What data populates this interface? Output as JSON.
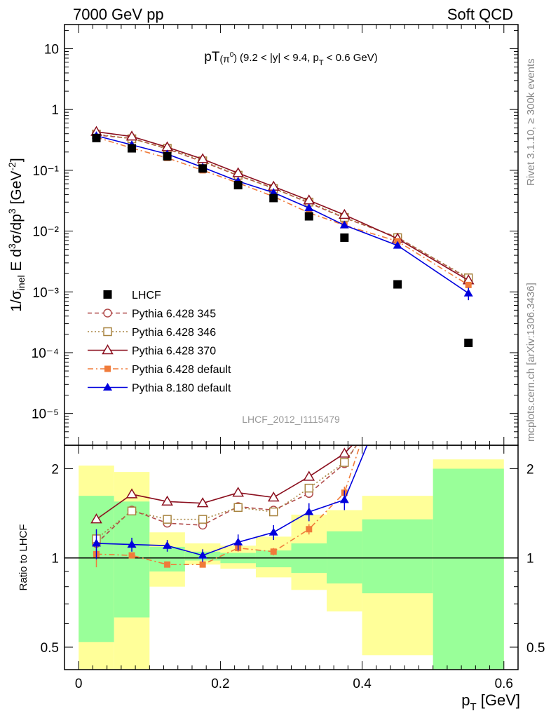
{
  "header": {
    "left": "7000 GeV pp",
    "right": "Soft QCD"
  },
  "side_labels": {
    "rivet": "Rivet 3.1.10, ≥ 300k events",
    "mcplots": "mcplots.cern.ch [arXiv:1306.3436]"
  },
  "watermark": "LHCF_2012_I1115479",
  "colors": {
    "lhcf": "#000000",
    "p345": "#b04a4a",
    "p346": "#a88440",
    "p370": "#8b0f1e",
    "p6def": "#f07b3a",
    "p8def": "#0000dd",
    "band_green": "#99ff99",
    "band_yellow": "#ffff99"
  },
  "chart_data": [
    {
      "type": "scatter",
      "title": "pT(π⁰) (9.2 < |y| < 9.4, pT < 0.6 GeV)",
      "ylabel": "1/σinel E d³σ/dp³ [GeV⁻²]",
      "yscale": "log",
      "xlim": [
        -0.02,
        0.62
      ],
      "ylim": [
        3e-06,
        25
      ],
      "yticks": [
        1e-05,
        0.0001,
        0.001,
        0.01,
        0.1,
        1,
        10
      ],
      "ytick_labels": [
        "10⁻⁵",
        "10⁻⁴",
        "10⁻³",
        "10⁻²",
        "10⁻¹",
        "1",
        "10"
      ],
      "legend_position": "bottom-left",
      "series": [
        {
          "name": "LHCF",
          "key": "lhcf",
          "marker": "square",
          "line": "none",
          "x": [
            0.025,
            0.075,
            0.125,
            0.175,
            0.225,
            0.275,
            0.325,
            0.375,
            0.45,
            0.55
          ],
          "y": [
            0.34,
            0.23,
            0.17,
            0.107,
            0.057,
            0.035,
            0.0175,
            0.0078,
            0.00133,
            0.000145
          ]
        },
        {
          "name": "Pythia 6.428 345",
          "key": "p345",
          "marker": "open-circle",
          "line": "dashed",
          "x": [
            0.025,
            0.075,
            0.125,
            0.175,
            0.225,
            0.275,
            0.325,
            0.375,
            0.45,
            0.55
          ],
          "y": [
            0.38,
            0.335,
            0.225,
            0.138,
            0.082,
            0.051,
            0.029,
            0.0165,
            0.0079,
            0.00165
          ]
        },
        {
          "name": "Pythia 6.428 346",
          "key": "p346",
          "marker": "open-square",
          "line": "dotted",
          "x": [
            0.025,
            0.075,
            0.125,
            0.175,
            0.225,
            0.275,
            0.325,
            0.375,
            0.45,
            0.55
          ],
          "y": [
            0.395,
            0.33,
            0.23,
            0.143,
            0.083,
            0.05,
            0.03,
            0.0168,
            0.0078,
            0.0017
          ]
        },
        {
          "name": "Pythia 6.428 370",
          "key": "p370",
          "marker": "open-triangle",
          "line": "solid",
          "x": [
            0.025,
            0.075,
            0.125,
            0.175,
            0.225,
            0.275,
            0.325,
            0.375,
            0.45,
            0.55
          ],
          "y": [
            0.43,
            0.36,
            0.24,
            0.153,
            0.09,
            0.054,
            0.032,
            0.0185,
            0.0075,
            0.00155
          ]
        },
        {
          "name": "Pythia 6.428 default",
          "key": "p6def",
          "marker": "filled-square-small",
          "line": "dashdot",
          "x": [
            0.025,
            0.075,
            0.125,
            0.175,
            0.225,
            0.275,
            0.325,
            0.375,
            0.45,
            0.55
          ],
          "y": [
            0.35,
            0.232,
            0.16,
            0.1,
            0.062,
            0.037,
            0.02,
            0.0125,
            0.0068,
            0.0013
          ]
        },
        {
          "name": "Pythia 8.180 default",
          "key": "p8def",
          "marker": "filled-triangle",
          "line": "solid",
          "x": [
            0.025,
            0.075,
            0.125,
            0.175,
            0.225,
            0.275,
            0.325,
            0.375,
            0.45,
            0.55
          ],
          "y": [
            0.37,
            0.262,
            0.185,
            0.112,
            0.066,
            0.043,
            0.024,
            0.0125,
            0.0058,
            0.00095
          ],
          "yerr": [
            0,
            0,
            0,
            0,
            0,
            0,
            0.002,
            0.001,
            0.0005,
            0.00022
          ]
        }
      ]
    },
    {
      "type": "line",
      "title": "",
      "xlabel": "pT [GeV]",
      "ylabel": "Ratio to LHCF",
      "yscale": "log",
      "xlim": [
        -0.02,
        0.62
      ],
      "ylim": [
        0.42,
        2.4
      ],
      "xticks": [
        0,
        0.2,
        0.4,
        0.6
      ],
      "xtick_labels": [
        "0",
        "0.2",
        "0.4",
        "0.6"
      ],
      "yticks": [
        0.5,
        1,
        2
      ],
      "ytick_labels": [
        "0.5",
        "1",
        "2"
      ],
      "reference_line": 1,
      "bands": {
        "x_edges": [
          0.0,
          0.05,
          0.1,
          0.15,
          0.2,
          0.25,
          0.3,
          0.35,
          0.4,
          0.5,
          0.6
        ],
        "yellow_low": [
          0.42,
          0.42,
          0.8,
          0.95,
          0.92,
          0.86,
          0.78,
          0.66,
          0.47,
          0.42
        ],
        "yellow_high": [
          2.05,
          1.95,
          1.22,
          1.12,
          1.1,
          1.18,
          1.4,
          1.45,
          1.62,
          2.15
        ],
        "green_low": [
          0.52,
          0.63,
          0.9,
          0.98,
          0.96,
          0.93,
          0.89,
          0.82,
          0.76,
          0.42
        ],
        "green_high": [
          1.62,
          1.55,
          1.09,
          1.05,
          1.04,
          1.06,
          1.12,
          1.23,
          1.35,
          2.0
        ]
      },
      "series": [
        {
          "name": "Pythia 6.428 345",
          "key": "p345",
          "x": [
            0.025,
            0.075,
            0.125,
            0.175,
            0.225,
            0.275,
            0.325,
            0.375,
            0.392
          ],
          "y": [
            1.12,
            1.45,
            1.31,
            1.29,
            1.49,
            1.45,
            1.65,
            2.08,
            2.4
          ]
        },
        {
          "name": "Pythia 6.428 346",
          "key": "p346",
          "x": [
            0.025,
            0.075,
            0.125,
            0.175,
            0.225,
            0.275,
            0.325,
            0.375,
            0.392
          ],
          "y": [
            1.16,
            1.44,
            1.35,
            1.35,
            1.48,
            1.43,
            1.72,
            2.1,
            2.4
          ]
        },
        {
          "name": "Pythia 6.428 370",
          "key": "p370",
          "x": [
            0.025,
            0.075,
            0.125,
            0.175,
            0.225,
            0.275,
            0.325,
            0.375,
            0.386
          ],
          "y": [
            1.35,
            1.64,
            1.55,
            1.53,
            1.66,
            1.6,
            1.88,
            2.25,
            2.4
          ]
        },
        {
          "name": "Pythia 6.428 default",
          "key": "p6def",
          "x": [
            0.025,
            0.075,
            0.125,
            0.175,
            0.225,
            0.275,
            0.325,
            0.375,
            0.397
          ],
          "y": [
            1.03,
            1.02,
            0.95,
            0.95,
            1.08,
            1.05,
            1.25,
            1.66,
            2.4
          ],
          "yerr": [
            0.1,
            0.02,
            0.02,
            0.02,
            0.03,
            0.03,
            0.05,
            0.08,
            0
          ]
        },
        {
          "name": "Pythia 8.180 default",
          "key": "p8def",
          "x": [
            0.025,
            0.075,
            0.125,
            0.175,
            0.225,
            0.275,
            0.325,
            0.375,
            0.407
          ],
          "y": [
            1.12,
            1.11,
            1.1,
            1.02,
            1.13,
            1.22,
            1.43,
            1.57,
            2.4
          ],
          "yerr": [
            0.13,
            0.06,
            0.05,
            0.05,
            0.07,
            0.07,
            0.1,
            0.12,
            0
          ]
        }
      ]
    }
  ]
}
